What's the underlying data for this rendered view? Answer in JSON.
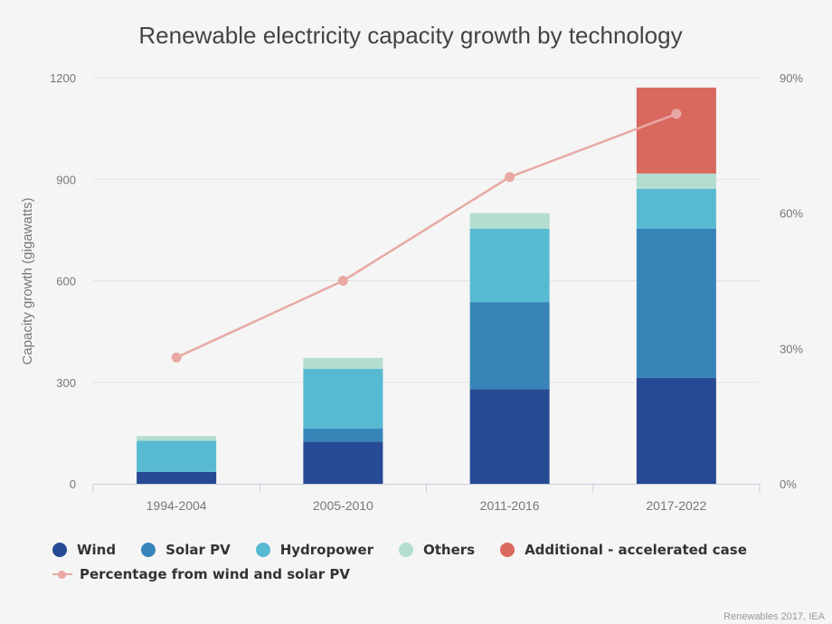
{
  "chart_data": {
    "type": "bar",
    "stacked": true,
    "title": "Renewable electricity capacity growth by technology",
    "xlabel": "",
    "ylabel": "Capacity growth (gigawatts)",
    "ylim": [
      0,
      1200
    ],
    "yticks": [
      "0",
      "300",
      "600",
      "900",
      "1200"
    ],
    "ytick_values": [
      0,
      300,
      600,
      900,
      1200
    ],
    "y2lim": [
      0,
      90
    ],
    "y2ticks": [
      "0%",
      "30%",
      "60%",
      "90%"
    ],
    "y2tick_values": [
      0,
      30,
      60,
      90
    ],
    "grid": true,
    "categories": [
      "1994-2004",
      "2005-2010",
      "2011-2016",
      "2017-2022"
    ],
    "series": [
      {
        "name": "Wind",
        "color": "#264a93",
        "values": [
          35,
          125,
          280,
          313
        ]
      },
      {
        "name": "Solar PV",
        "color": "#3784b9",
        "values": [
          0,
          38,
          257,
          441
        ]
      },
      {
        "name": "Hydropower",
        "color": "#58b9d2",
        "values": [
          92,
          177,
          217,
          118
        ]
      },
      {
        "name": "Others",
        "color": "#b3ddd0",
        "values": [
          14,
          32,
          46,
          45
        ]
      },
      {
        "name": "Additional - accelerated case",
        "color": "#d9685f",
        "values": [
          0,
          0,
          0,
          254
        ]
      }
    ],
    "line_series": {
      "name": "Percentage from wind and solar PV",
      "color": "#e8a9a5",
      "axis": "right",
      "unit": "%",
      "values": [
        28,
        45,
        68,
        82
      ]
    },
    "legend_position": "bottom-left"
  },
  "credit": "Renewables 2017, IEA"
}
